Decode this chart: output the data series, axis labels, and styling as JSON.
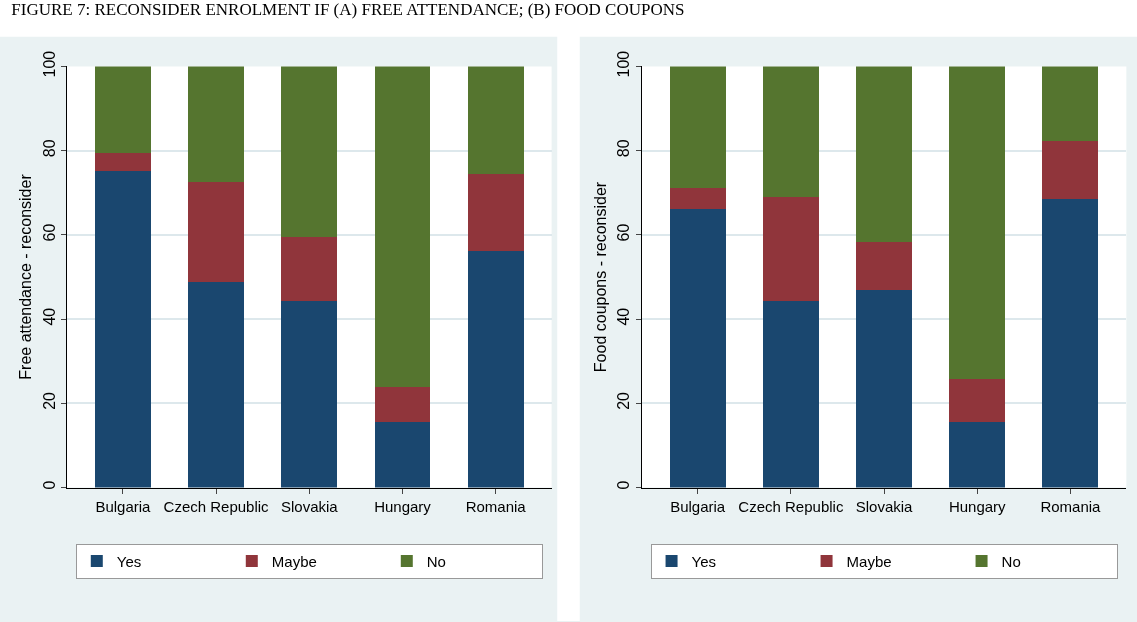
{
  "chart_data": [
    {
      "type": "bar",
      "title": "FIGURE 7: RECONSIDER ENROLMENT IF (A) FREE ATTENDANCE; (B) FOOD COUPONS",
      "ylabel": "Free attendance - reconsider",
      "categories": [
        "Bulgaria",
        "Czech Republic",
        "Slovakia",
        "Hungary",
        "Romania"
      ],
      "stacked": true,
      "series": [
        {
          "name": "Yes",
          "color": "#1a476f",
          "values": [
            75.2,
            48.9,
            44.2,
            15.5,
            56.1
          ]
        },
        {
          "name": "Maybe",
          "color": "#90353b",
          "values": [
            4.2,
            23.6,
            15.2,
            8.3,
            18.3
          ]
        },
        {
          "name": "No",
          "color": "#55752f",
          "values": [
            20.6,
            27.5,
            40.6,
            76.2,
            25.6
          ]
        }
      ],
      "ylim": [
        0,
        100
      ],
      "yticks": [
        0,
        20,
        40,
        60,
        80,
        100
      ],
      "grid": "y",
      "legend": "bottom"
    },
    {
      "type": "bar",
      "ylabel": "Food coupons - reconsider",
      "categories": [
        "Bulgaria",
        "Czech Republic",
        "Slovakia",
        "Hungary",
        "Romania"
      ],
      "stacked": true,
      "series": [
        {
          "name": "Yes",
          "color": "#1a476f",
          "values": [
            66.1,
            44.2,
            46.9,
            15.5,
            68.6
          ]
        },
        {
          "name": "Maybe",
          "color": "#90353b",
          "values": [
            5.1,
            24.7,
            11.3,
            10.2,
            13.8
          ]
        },
        {
          "name": "No",
          "color": "#55752f",
          "values": [
            28.8,
            31.1,
            41.8,
            74.3,
            17.6
          ]
        }
      ],
      "ylim": [
        0,
        100
      ],
      "yticks": [
        0,
        20,
        40,
        60,
        80,
        100
      ],
      "grid": "y",
      "legend": "bottom"
    }
  ]
}
